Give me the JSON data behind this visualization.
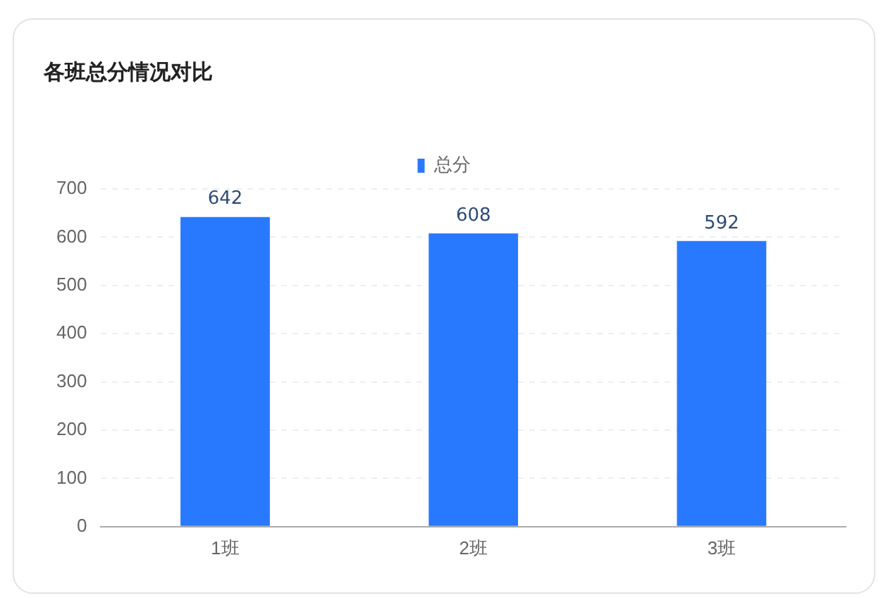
{
  "chart_data": {
    "type": "bar",
    "title": "各班总分情况对比",
    "categories": [
      "1班",
      "2班",
      "3班"
    ],
    "series": [
      {
        "name": "总分",
        "color": "#2979ff",
        "values": [
          642,
          608,
          592
        ]
      }
    ],
    "ylim": [
      0,
      700
    ],
    "yticks": [
      0,
      100,
      200,
      300,
      400,
      500,
      600,
      700
    ],
    "grid": "y",
    "legend": "top",
    "data_labels": true
  }
}
